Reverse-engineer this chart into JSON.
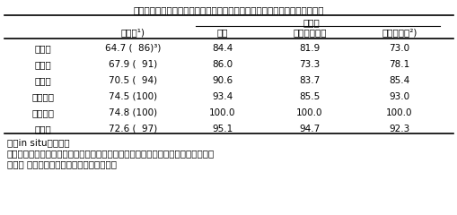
{
  "title": "表１．収穫時期別トウモロコシサイレージの乾物消化率と可消化養分回収率",
  "rows": [
    [
      "水熟期",
      "64.7 (  86)³)",
      "84.4",
      "81.9",
      "73.0"
    ],
    [
      "乳熟期",
      "67.9 (  91)",
      "86.0",
      "73.3",
      "78.1"
    ],
    [
      "糊熟期",
      "70.5 (  94)",
      "90.6",
      "83.7",
      "85.4"
    ],
    [
      "黄熟初期",
      "74.5 (100)",
      "93.4",
      "85.5",
      "93.0"
    ],
    [
      "黄熟後期",
      "74.8 (100)",
      "100.0",
      "100.0",
      "100.0"
    ],
    [
      "完熟期",
      "72.6 (  97)",
      "95.1",
      "94.7",
      "92.3"
    ]
  ],
  "footnotes": [
    "１）in situ法による",
    "２）黄熟期の可消化養分回収率を１００とし各収穫時期の可消化養分回収率を算出",
    "３）（ ）内は黄熟後期を１００とした比率"
  ],
  "bg_color": "#ffffff",
  "text_color": "#000000"
}
